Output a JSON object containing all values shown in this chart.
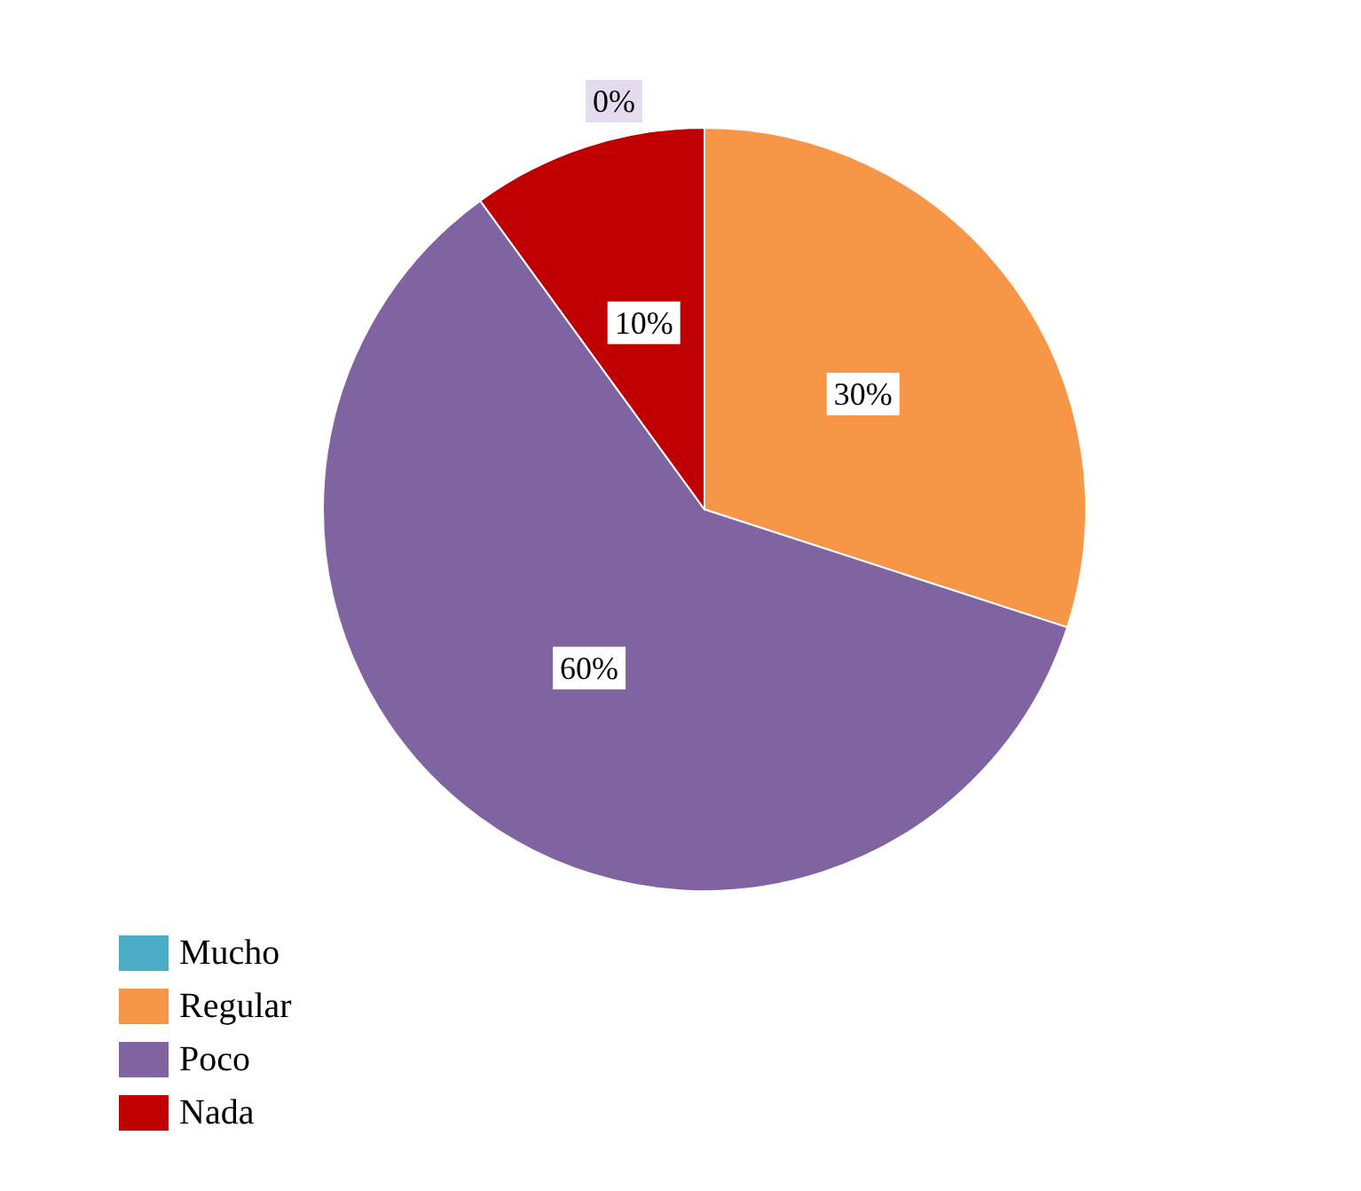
{
  "chart_data": {
    "type": "pie",
    "categories": [
      "Mucho",
      "Regular",
      "Poco",
      "Nada"
    ],
    "values": [
      0,
      30,
      60,
      10
    ],
    "value_labels": [
      "0%",
      "30%",
      "60%",
      "10%"
    ],
    "colors": [
      "#4bacc6",
      "#f79646",
      "#8064a2",
      "#c00000"
    ],
    "legend": "bottom left"
  }
}
